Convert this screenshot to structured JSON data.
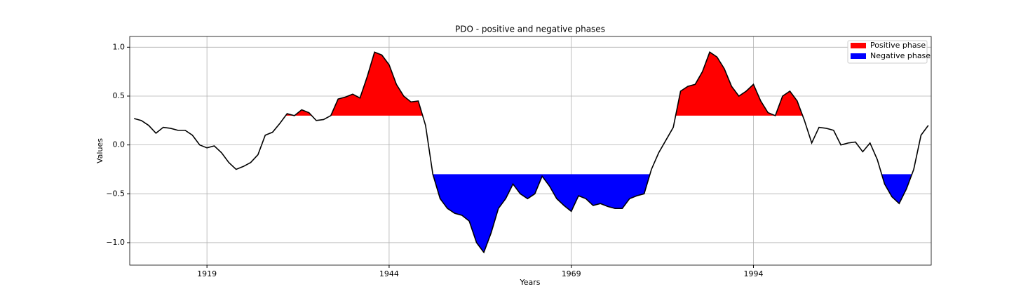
{
  "chart_data": {
    "type": "line",
    "title": "PDO - positive and negative phases",
    "x_label": "Years",
    "y_label": "Values",
    "x": [
      1909,
      1910,
      1911,
      1912,
      1913,
      1914,
      1915,
      1916,
      1917,
      1918,
      1919,
      1920,
      1921,
      1922,
      1923,
      1924,
      1925,
      1926,
      1927,
      1928,
      1929,
      1930,
      1931,
      1932,
      1933,
      1934,
      1935,
      1936,
      1937,
      1938,
      1939,
      1940,
      1941,
      1942,
      1943,
      1944,
      1945,
      1946,
      1947,
      1948,
      1949,
      1950,
      1951,
      1952,
      1953,
      1954,
      1955,
      1956,
      1957,
      1958,
      1959,
      1960,
      1961,
      1962,
      1963,
      1964,
      1965,
      1966,
      1967,
      1968,
      1969,
      1970,
      1971,
      1972,
      1973,
      1974,
      1975,
      1976,
      1977,
      1978,
      1979,
      1980,
      1981,
      1982,
      1983,
      1984,
      1985,
      1986,
      1987,
      1988,
      1989,
      1990,
      1991,
      1992,
      1993,
      1994,
      1995,
      1996,
      1997,
      1998,
      1999,
      2000,
      2001,
      2002,
      2003,
      2004,
      2005,
      2006,
      2007,
      2008,
      2009,
      2010,
      2011,
      2012,
      2013,
      2014,
      2015,
      2016,
      2017,
      2018
    ],
    "series": [
      {
        "name": "PDO",
        "color": "#000000",
        "values": [
          0.27,
          0.25,
          0.2,
          0.12,
          0.18,
          0.17,
          0.15,
          0.15,
          0.1,
          0.0,
          -0.03,
          -0.01,
          -0.08,
          -0.18,
          -0.25,
          -0.22,
          -0.18,
          -0.1,
          0.1,
          0.13,
          0.22,
          0.32,
          0.3,
          0.36,
          0.33,
          0.25,
          0.26,
          0.3,
          0.47,
          0.49,
          0.52,
          0.48,
          0.7,
          0.95,
          0.92,
          0.82,
          0.62,
          0.5,
          0.44,
          0.45,
          0.2,
          -0.3,
          -0.55,
          -0.65,
          -0.7,
          -0.72,
          -0.78,
          -1.0,
          -1.1,
          -0.9,
          -0.65,
          -0.55,
          -0.4,
          -0.5,
          -0.55,
          -0.5,
          -0.32,
          -0.42,
          -0.55,
          -0.62,
          -0.68,
          -0.52,
          -0.55,
          -0.62,
          -0.6,
          -0.63,
          -0.65,
          -0.65,
          -0.55,
          -0.52,
          -0.5,
          -0.25,
          -0.08,
          0.05,
          0.18,
          0.55,
          0.6,
          0.62,
          0.75,
          0.95,
          0.9,
          0.78,
          0.6,
          0.5,
          0.55,
          0.62,
          0.45,
          0.33,
          0.3,
          0.5,
          0.55,
          0.45,
          0.25,
          0.02,
          0.18,
          0.17,
          0.15,
          0.0,
          0.02,
          0.03,
          -0.07,
          0.02,
          -0.15,
          -0.4,
          -0.53,
          -0.6,
          -0.45,
          -0.25,
          0.1,
          0.2
        ]
      }
    ],
    "fills": [
      {
        "name": "Positive phase",
        "color": "#ff0000",
        "threshold": 0.3,
        "side": "above"
      },
      {
        "name": "Negative phase",
        "color": "#0000ff",
        "threshold": -0.3,
        "side": "below"
      }
    ],
    "xlim": [
      1908.4,
      2018.4
    ],
    "ylim": [
      -1.23,
      1.11
    ],
    "xticks": [
      1919,
      1944,
      1969,
      1994
    ],
    "yticks": [
      {
        "value": -1.0,
        "label": "−1.0"
      },
      {
        "value": -0.5,
        "label": "−0.5"
      },
      {
        "value": 0.0,
        "label": "0.0"
      },
      {
        "value": 0.5,
        "label": "0.5"
      },
      {
        "value": 1.0,
        "label": "1.0"
      }
    ],
    "grid": true,
    "legend": "upper right"
  }
}
